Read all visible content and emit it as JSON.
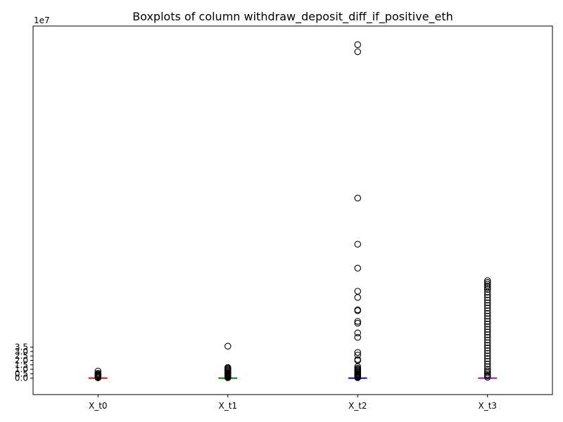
{
  "chart_data": {
    "type": "boxplot",
    "title": "Boxplots of column withdraw_deposit_diff_if_positive_eth",
    "xlabel": "",
    "ylabel": "",
    "offset_label": "1e7",
    "categories": [
      "X_t0",
      "X_t1",
      "X_t2",
      "X_t3"
    ],
    "ylim": [
      -1.85,
      39.7
    ],
    "yticks": [
      0,
      0.5,
      1.0,
      1.5,
      2.0,
      2.5,
      3.0,
      3.5
    ],
    "ytick_labels": [
      "0.0",
      "0.5",
      "1.0",
      "1.5",
      "2.0",
      "2.5",
      "3.0",
      "3.5"
    ],
    "grid": false,
    "legend": "none",
    "boxes": [
      {
        "name": "X_t0",
        "color": "#ff0000",
        "median": 0,
        "q1": 0,
        "q3": 0,
        "whisker_low": 0,
        "whisker_high": 0,
        "outliers": [
          0.8,
          0.55,
          0.45,
          0.4,
          0.35,
          0.3,
          0.25,
          0.2,
          0.15,
          0.12,
          0.1,
          0.08,
          0.06,
          0.04
        ]
      },
      {
        "name": "X_t1",
        "color": "#008000",
        "median": 0,
        "q1": 0,
        "q3": 0,
        "whisker_low": 0,
        "whisker_high": 0,
        "outliers": [
          3.6,
          1.2,
          1.1,
          1.0,
          0.9,
          0.8,
          0.7,
          0.6,
          0.55,
          0.5,
          0.45,
          0.4,
          0.35,
          0.3,
          0.25,
          0.2,
          0.15,
          0.12,
          0.1,
          0.08,
          0.05
        ]
      },
      {
        "name": "X_t2",
        "color": "#0000ff",
        "median": 0,
        "q1": 0,
        "q3": 0,
        "whisker_low": 0,
        "whisker_high": 0,
        "outliers": [
          37.6,
          36.8,
          20.3,
          15.1,
          12.4,
          9.8,
          9.1,
          7.7,
          7.6,
          6.4,
          6.2,
          5.1,
          4.6,
          2.9,
          2.6,
          2.1,
          2.0,
          1.3,
          1.1,
          1.0,
          0.9,
          0.8,
          0.7,
          0.6,
          0.5,
          0.4,
          0.3,
          0.25,
          0.2,
          0.15,
          0.1,
          0.05
        ]
      },
      {
        "name": "X_t3",
        "color": "#bf00bf",
        "median": 0,
        "q1": 0,
        "q3": 0,
        "whisker_low": 0,
        "whisker_high": 0,
        "outliers": [
          11.0,
          10.8,
          10.6,
          10.4,
          10.2,
          10.0,
          9.7,
          9.4,
          9.1,
          8.8,
          8.5,
          8.2,
          7.9,
          7.6,
          7.3,
          7.0,
          6.7,
          6.4,
          6.1,
          5.8,
          5.5,
          5.2,
          4.9,
          4.6,
          4.3,
          4.0,
          3.7,
          3.4,
          3.1,
          2.8,
          2.5,
          2.2,
          1.9,
          1.6,
          1.3,
          1.0,
          0.8,
          0.6,
          0.4,
          0.25,
          0.1
        ]
      }
    ]
  }
}
